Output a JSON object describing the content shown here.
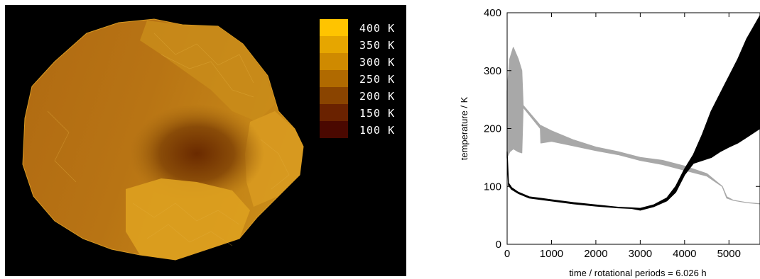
{
  "figure": {
    "left_panel": {
      "name": "asteroid-temperature-map",
      "colorbar": [
        {
          "label": "400 K",
          "color": "#ffc400"
        },
        {
          "label": "350 K",
          "color": "#e6a600"
        },
        {
          "label": "300 K",
          "color": "#cf8a00"
        },
        {
          "label": "250 K",
          "color": "#b06a00"
        },
        {
          "label": "200 K",
          "color": "#8a4400"
        },
        {
          "label": "150 K",
          "color": "#6a2200"
        },
        {
          "label": "100 K",
          "color": "#4a0800"
        }
      ]
    }
  },
  "chart_data": {
    "type": "line",
    "title": "",
    "xlabel": "time / rotational periods = 6.026 h",
    "ylabel": "temperature / K",
    "xlim": [
      0,
      5700
    ],
    "ylim": [
      0,
      400
    ],
    "xticks": [
      0,
      1000,
      2000,
      3000,
      4000,
      5000
    ],
    "yticks": [
      0,
      100,
      200,
      300,
      400
    ],
    "grid": false,
    "legend": "none",
    "series": [
      {
        "color": "#a8a8a8",
        "style": "band (diurnal min/max envelope)",
        "x": [
          0,
          60,
          140,
          250,
          330,
          360,
          750,
          760,
          1000,
          1500,
          2000,
          2500,
          3000,
          3500,
          4000,
          4500,
          4850,
          4950,
          5100,
          5400,
          5700
        ],
        "min": [
          150,
          160,
          165,
          160,
          158,
          237,
          200,
          175,
          178,
          170,
          162,
          155,
          145,
          138,
          128,
          118,
          100,
          80,
          76,
          72,
          70
        ],
        "max": [
          265,
          320,
          340,
          320,
          300,
          240,
          205,
          205,
          196,
          180,
          168,
          160,
          150,
          145,
          135,
          122,
          100,
          82,
          76,
          72,
          70
        ]
      },
      {
        "color": "#000000",
        "style": "band (diurnal min/max envelope)",
        "x": [
          0,
          30,
          100,
          250,
          500,
          1000,
          1500,
          2000,
          2500,
          2800,
          3000,
          3300,
          3600,
          3800,
          4000,
          4200,
          4400,
          4600,
          4800,
          5000,
          5200,
          5400,
          5700
        ],
        "min": [
          150,
          102,
          95,
          88,
          80,
          75,
          70,
          66,
          63,
          62,
          59,
          65,
          75,
          90,
          120,
          140,
          145,
          150,
          160,
          168,
          175,
          185,
          200
        ],
        "max": [
          160,
          106,
          98,
          90,
          82,
          77,
          72,
          68,
          64,
          63,
          62,
          68,
          80,
          100,
          130,
          155,
          190,
          230,
          260,
          290,
          320,
          355,
          395
        ]
      }
    ]
  }
}
